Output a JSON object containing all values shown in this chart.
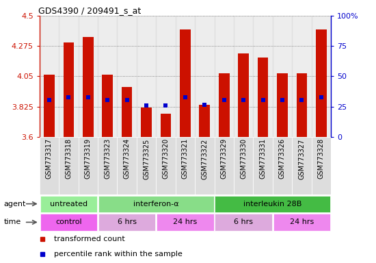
{
  "title": "GDS4390 / 209491_s_at",
  "samples": [
    "GSM773317",
    "GSM773318",
    "GSM773319",
    "GSM773323",
    "GSM773324",
    "GSM773325",
    "GSM773320",
    "GSM773321",
    "GSM773322",
    "GSM773329",
    "GSM773330",
    "GSM773331",
    "GSM773326",
    "GSM773327",
    "GSM773328"
  ],
  "bar_values": [
    4.06,
    4.3,
    4.34,
    4.06,
    3.97,
    3.82,
    3.77,
    4.4,
    3.84,
    4.07,
    4.22,
    4.19,
    4.07,
    4.07,
    4.4
  ],
  "percentile_values": [
    3.875,
    3.895,
    3.895,
    3.875,
    3.875,
    3.835,
    3.835,
    3.895,
    3.84,
    3.875,
    3.875,
    3.875,
    3.875,
    3.875,
    3.895
  ],
  "ymin": 3.6,
  "ymax": 4.5,
  "yticks": [
    3.6,
    3.825,
    4.05,
    4.275,
    4.5
  ],
  "ytick_labels": [
    "3.6",
    "3.825",
    "4.05",
    "4.275",
    "4.5"
  ],
  "right_ytick_labels": [
    "0",
    "25",
    "50",
    "75",
    "100%"
  ],
  "bar_color": "#cc1100",
  "marker_color": "#0000cc",
  "agent_groups": [
    {
      "label": "untreated",
      "start": 0,
      "end": 3,
      "color": "#99ee99"
    },
    {
      "label": "interferon-α",
      "start": 3,
      "end": 9,
      "color": "#88dd88"
    },
    {
      "label": "interleukin 28B",
      "start": 9,
      "end": 15,
      "color": "#44bb44"
    }
  ],
  "time_groups": [
    {
      "label": "control",
      "start": 0,
      "end": 3,
      "color": "#ee66ee"
    },
    {
      "label": "6 hrs",
      "start": 3,
      "end": 6,
      "color": "#ddaadd"
    },
    {
      "label": "24 hrs",
      "start": 6,
      "end": 9,
      "color": "#ee88ee"
    },
    {
      "label": "6 hrs",
      "start": 9,
      "end": 12,
      "color": "#ddaadd"
    },
    {
      "label": "24 hrs",
      "start": 12,
      "end": 15,
      "color": "#ee88ee"
    }
  ],
  "legend_items": [
    {
      "color": "#cc1100",
      "label": "transformed count"
    },
    {
      "color": "#0000cc",
      "label": "percentile rank within the sample"
    }
  ],
  "col_bg_color": "#dddddd",
  "grid_color": "#333333",
  "bar_width": 0.55
}
